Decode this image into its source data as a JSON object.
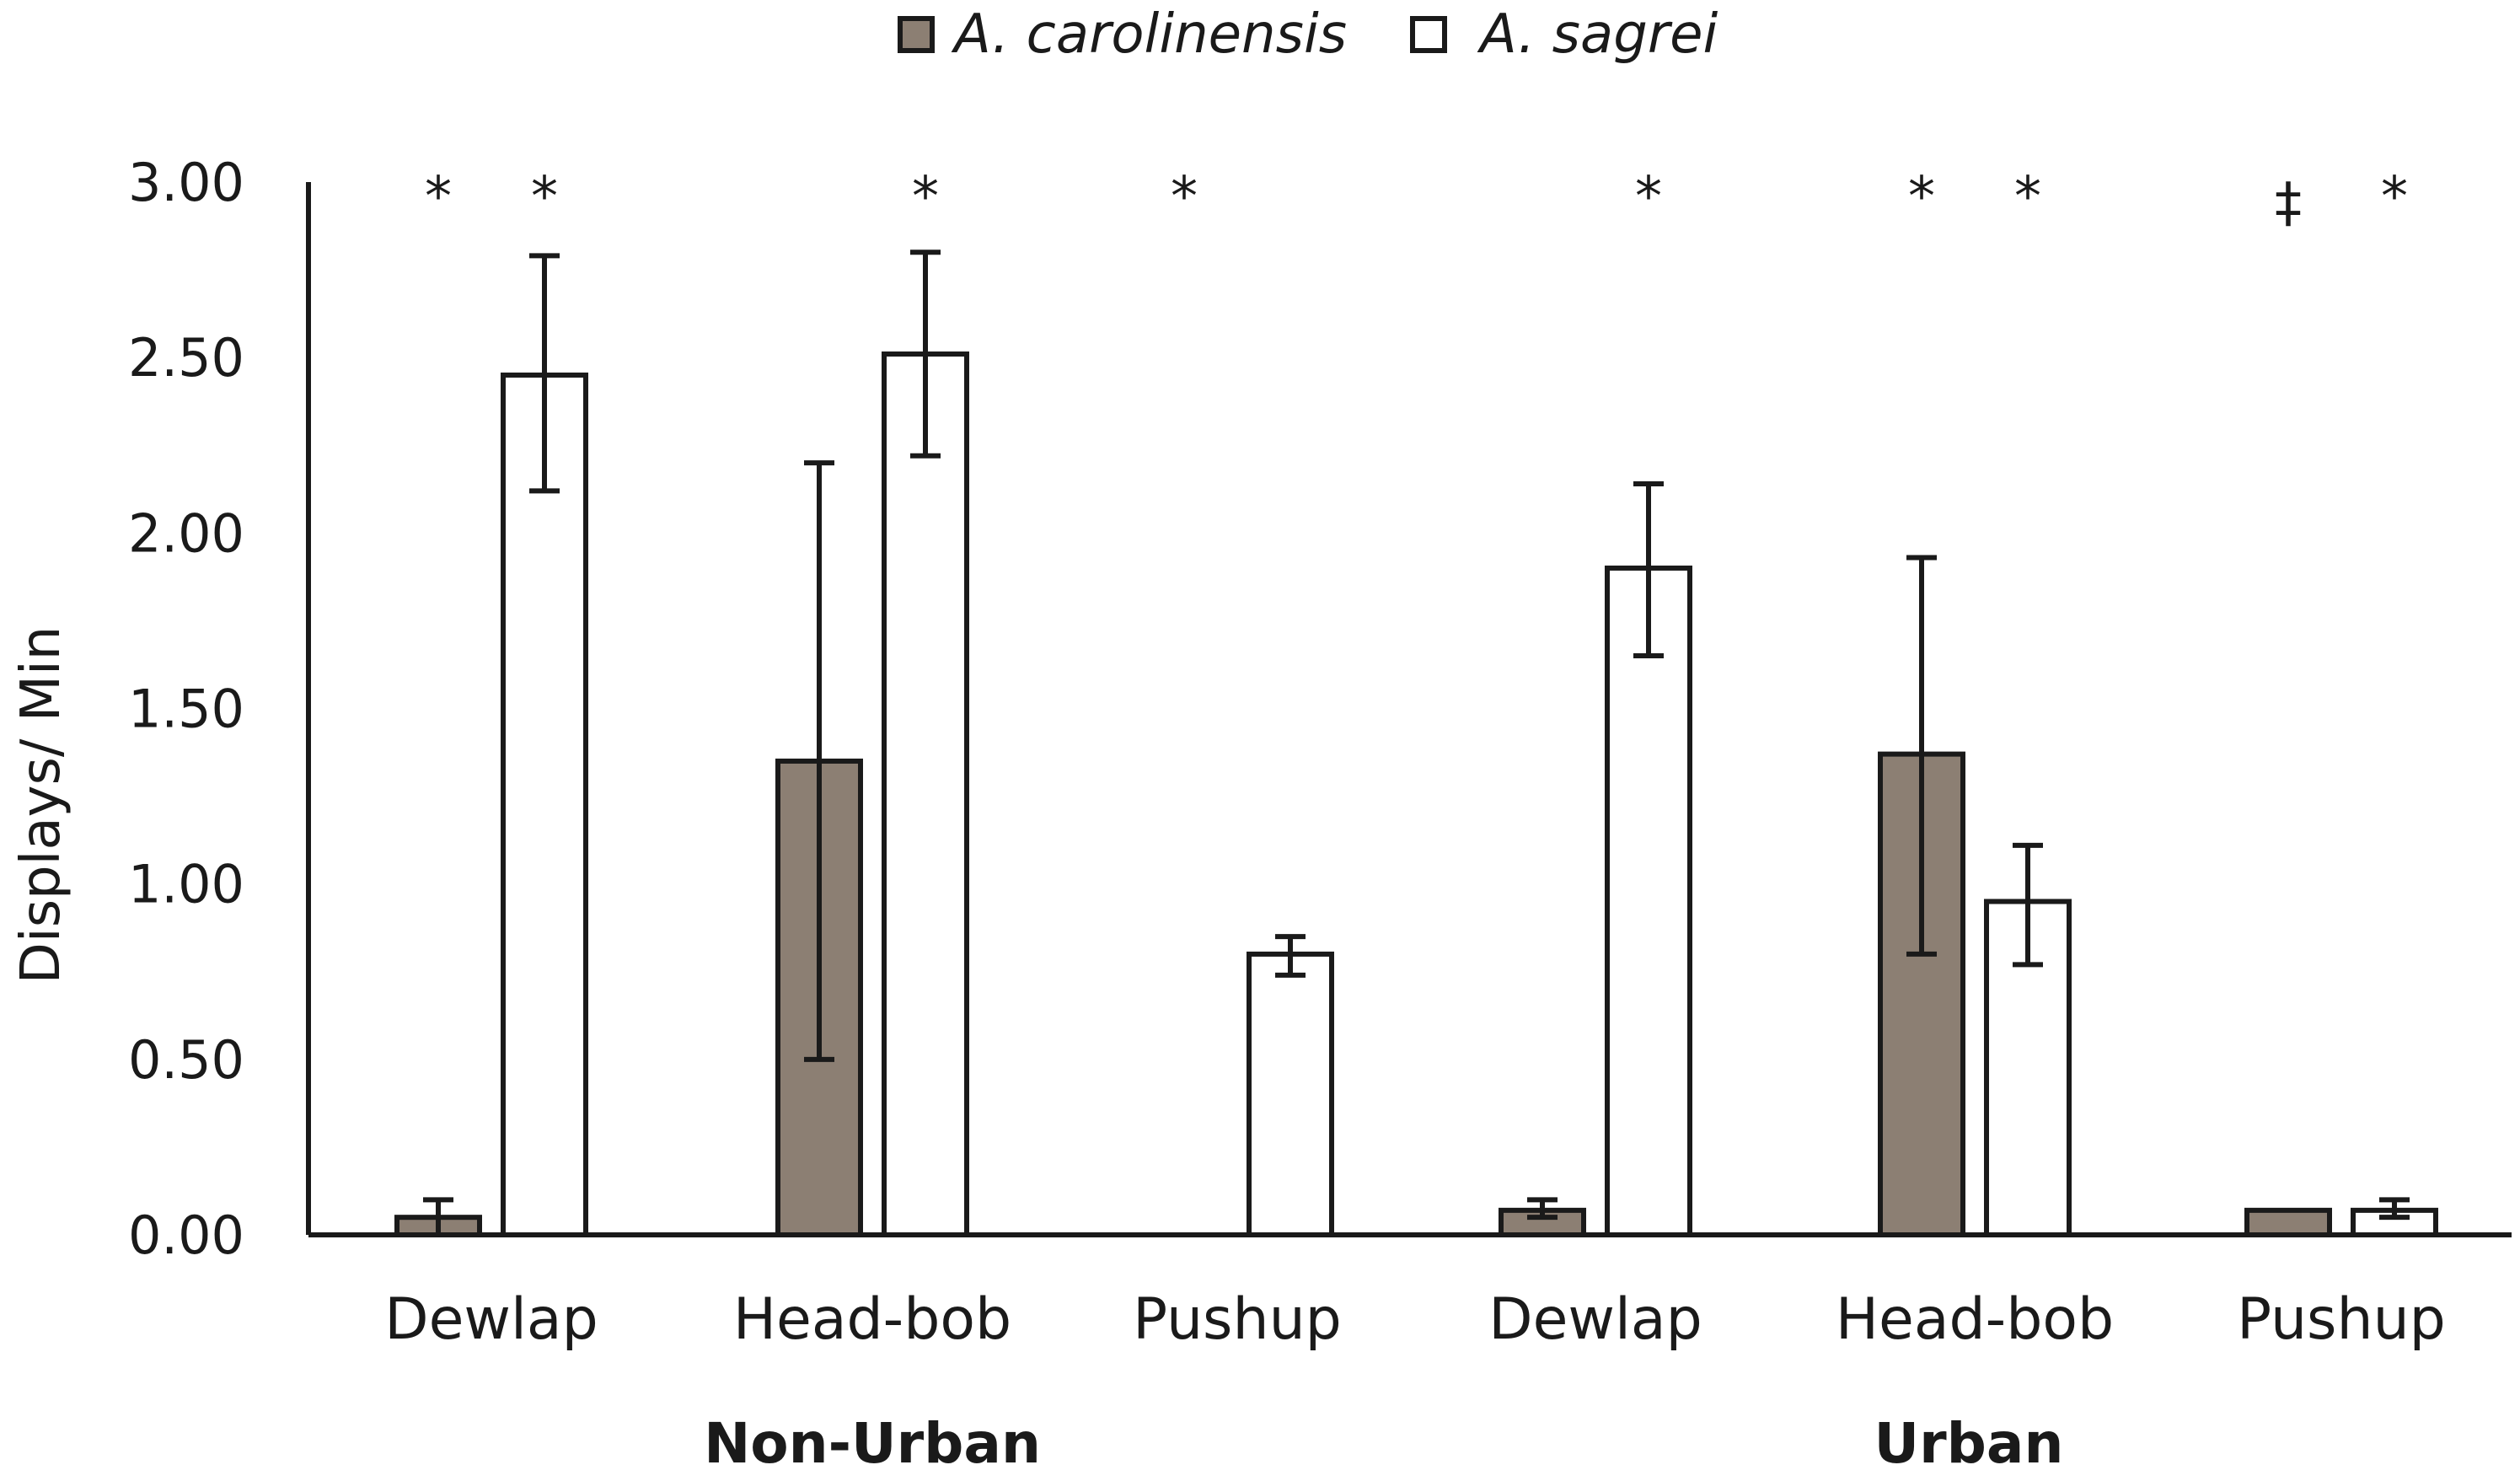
{
  "chart_data": {
    "type": "bar",
    "ylabel": "Displays/ Min",
    "ylim": [
      0,
      3
    ],
    "yticks": [
      "0.00",
      "0.50",
      "1.00",
      "1.50",
      "2.00",
      "2.50",
      "3.00"
    ],
    "legend_position": "top-center",
    "groups": [
      {
        "label": "Non-Urban",
        "categories": [
          "Dewlap",
          "Head-bob",
          "Pushup"
        ]
      },
      {
        "label": "Urban",
        "categories": [
          "Dewlap",
          "Head-bob",
          "Pushup"
        ]
      }
    ],
    "categories": [
      "Dewlap",
      "Head-bob",
      "Pushup",
      "Dewlap",
      "Head-bob",
      "Pushup"
    ],
    "series": [
      {
        "name": "A. carolinensis",
        "color": "#8c7f73",
        "values": [
          0.05,
          1.35,
          0.0,
          0.07,
          1.37,
          0.07
        ],
        "error_low": [
          0.0,
          0.5,
          0.0,
          0.05,
          0.8,
          0.07
        ],
        "error_high": [
          0.1,
          2.2,
          0.0,
          0.1,
          1.93,
          0.07
        ],
        "significance": [
          "*",
          "",
          "*",
          "",
          "*",
          "‡"
        ]
      },
      {
        "name": "A. sagrei",
        "color": "#ffffff",
        "values": [
          2.45,
          2.51,
          0.8,
          1.9,
          0.95,
          0.07
        ],
        "error_low": [
          2.12,
          2.22,
          0.74,
          1.65,
          0.77,
          0.05
        ],
        "error_high": [
          2.79,
          2.8,
          0.85,
          2.14,
          1.11,
          0.1
        ],
        "significance": [
          "*",
          "*",
          "",
          "*",
          "*",
          "*"
        ]
      }
    ]
  }
}
